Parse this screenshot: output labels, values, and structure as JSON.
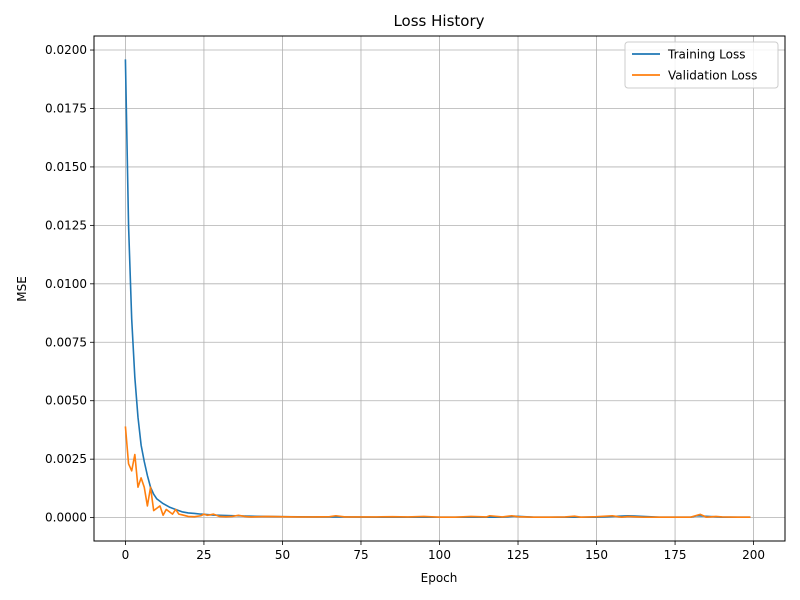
{
  "chart_data": {
    "type": "line",
    "title": "Loss History",
    "xlabel": "Epoch",
    "ylabel": "MSE",
    "xlim": [
      -10,
      210
    ],
    "ylim": [
      -0.001,
      0.0206
    ],
    "xticks": [
      0,
      25,
      50,
      75,
      100,
      125,
      150,
      175,
      200
    ],
    "xtick_labels": [
      "0",
      "25",
      "50",
      "75",
      "100",
      "125",
      "150",
      "175",
      "200"
    ],
    "yticks": [
      0.0,
      0.0025,
      0.005,
      0.0075,
      0.01,
      0.0125,
      0.015,
      0.0175,
      0.02
    ],
    "ytick_labels": [
      "0.0000",
      "0.0025",
      "0.0050",
      "0.0075",
      "0.0100",
      "0.0125",
      "0.0150",
      "0.0175",
      "0.0200"
    ],
    "grid": true,
    "legend_position": "top-right",
    "series": [
      {
        "name": "Training Loss",
        "color": "#1f77b4",
        "x": [
          0,
          1,
          2,
          3,
          4,
          5,
          6,
          7,
          8,
          9,
          10,
          12,
          14,
          16,
          18,
          20,
          22,
          24,
          26,
          28,
          30,
          35,
          40,
          45,
          50,
          60,
          70,
          80,
          90,
          100,
          110,
          120,
          124,
          130,
          140,
          150,
          160,
          170,
          180,
          182,
          190,
          199
        ],
        "y": [
          0.0196,
          0.0125,
          0.0085,
          0.006,
          0.0043,
          0.0031,
          0.0024,
          0.0018,
          0.0013,
          0.001,
          0.0008,
          0.0006,
          0.00045,
          0.00035,
          0.00025,
          0.0002,
          0.00018,
          0.00015,
          0.00013,
          0.00011,
          0.0001,
          8e-05,
          6e-05,
          5e-05,
          4e-05,
          3e-05,
          3e-05,
          2e-05,
          2e-05,
          2e-05,
          2e-05,
          2e-05,
          6e-05,
          2e-05,
          2e-05,
          2e-05,
          8e-05,
          2e-05,
          2e-05,
          8e-05,
          2e-05,
          2e-05
        ]
      },
      {
        "name": "Validation Loss",
        "color": "#ff7f0e",
        "x": [
          0,
          1,
          2,
          3,
          4,
          5,
          6,
          7,
          8,
          9,
          10,
          11,
          12,
          13,
          14,
          15,
          16,
          17,
          18,
          20,
          22,
          24,
          25,
          26,
          27,
          28,
          30,
          32,
          34,
          36,
          38,
          40,
          45,
          50,
          55,
          60,
          65,
          67,
          70,
          75,
          80,
          85,
          90,
          95,
          100,
          105,
          110,
          115,
          116,
          120,
          123,
          125,
          130,
          135,
          140,
          143,
          145,
          150,
          155,
          158,
          160,
          165,
          170,
          175,
          180,
          182,
          183,
          185,
          188,
          190,
          195,
          199
        ],
        "y": [
          0.0039,
          0.0023,
          0.002,
          0.0027,
          0.0013,
          0.0017,
          0.0013,
          0.0005,
          0.0013,
          0.0003,
          0.0004,
          0.0005,
          0.0001,
          0.00035,
          0.00025,
          0.00015,
          0.00035,
          0.00015,
          0.00012,
          5e-05,
          4e-05,
          8e-05,
          0.00015,
          0.0001,
          0.00012,
          0.00015,
          5e-05,
          4e-05,
          5e-05,
          0.0001,
          5e-05,
          3e-05,
          5e-05,
          4e-05,
          3e-05,
          3e-05,
          4e-05,
          8e-05,
          3e-05,
          3e-05,
          3e-05,
          4e-05,
          3e-05,
          5e-05,
          2e-05,
          2e-05,
          5e-05,
          3e-05,
          8e-05,
          3e-05,
          8e-05,
          4e-05,
          2e-05,
          2e-05,
          3e-05,
          6e-05,
          2e-05,
          4e-05,
          8e-05,
          2e-05,
          5e-05,
          2e-05,
          2e-05,
          2e-05,
          2e-05,
          0.0001,
          0.00014,
          2e-05,
          5e-05,
          3e-05,
          2e-05,
          2e-05
        ]
      }
    ]
  }
}
